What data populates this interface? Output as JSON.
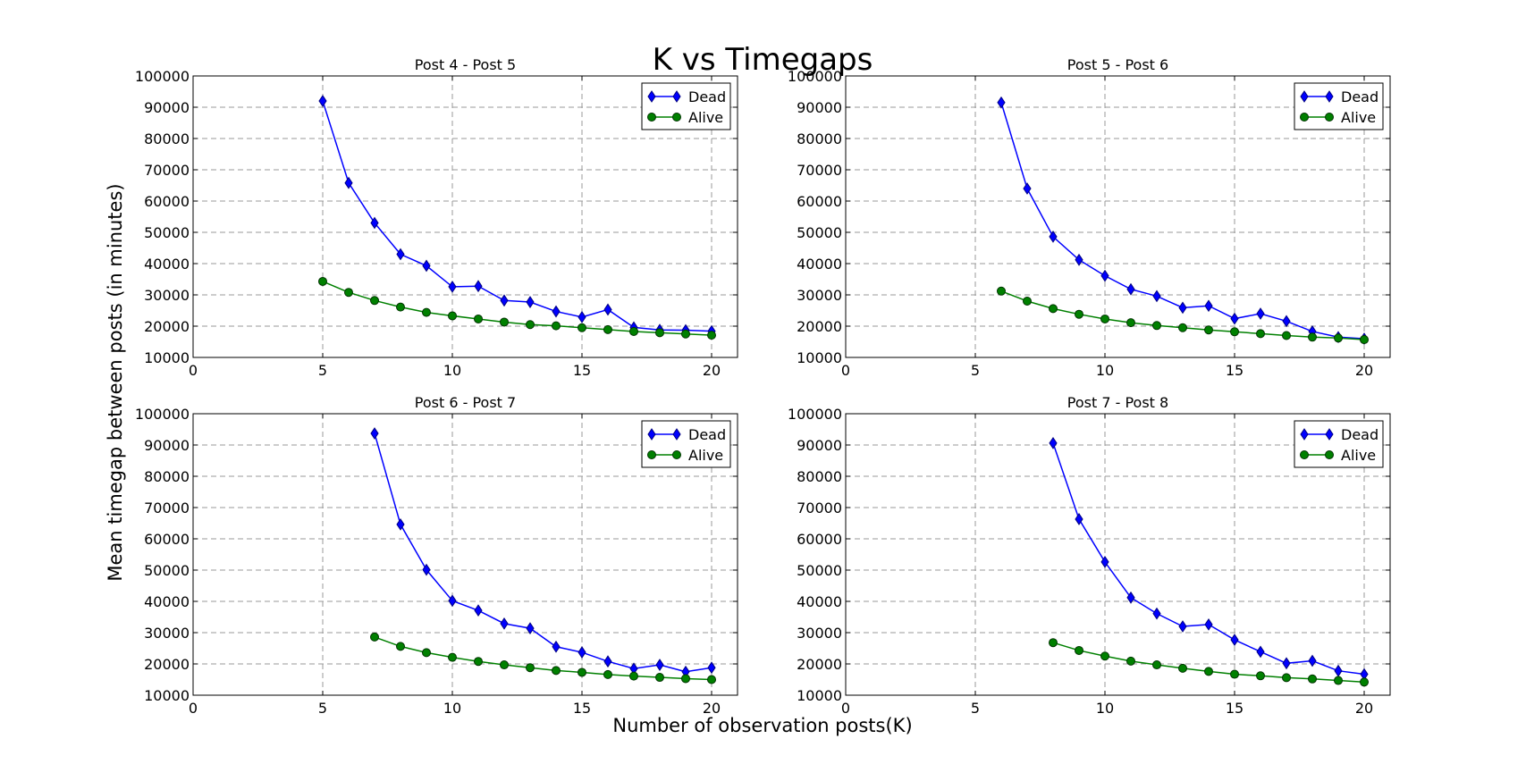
{
  "figure": {
    "title": "K vs Timegaps",
    "xlabel": "Number of observation posts(K)",
    "ylabel": "Mean timegap between posts (in minutes)"
  },
  "colors": {
    "dead": "#0000ff",
    "alive": "#008000",
    "dead_edge": "#000080",
    "alive_edge": "#003300"
  },
  "chart_data": [
    {
      "type": "line",
      "title": "Post 4 - Post 5",
      "xlim": [
        0,
        21
      ],
      "ylim": [
        10000,
        100000
      ],
      "xticks": [
        0,
        5,
        10,
        15,
        20
      ],
      "yticks": [
        10000,
        20000,
        30000,
        40000,
        50000,
        60000,
        70000,
        80000,
        90000,
        100000
      ],
      "grid": true,
      "legend": "top-right",
      "series": [
        {
          "name": "Dead",
          "marker": "diamond",
          "x": [
            5,
            6,
            7,
            8,
            9,
            10,
            11,
            12,
            13,
            14,
            15,
            16,
            17,
            18,
            19,
            20
          ],
          "y": [
            92000,
            65800,
            53000,
            43000,
            39300,
            32600,
            32800,
            28200,
            27700,
            24700,
            22900,
            25300,
            19600,
            18800,
            18700,
            18400
          ]
        },
        {
          "name": "Alive",
          "marker": "circle",
          "x": [
            5,
            6,
            7,
            8,
            9,
            10,
            11,
            12,
            13,
            14,
            15,
            16,
            17,
            18,
            19,
            20
          ],
          "y": [
            34300,
            30800,
            28200,
            26100,
            24400,
            23300,
            22300,
            21300,
            20500,
            20100,
            19500,
            18900,
            18300,
            17900,
            17500,
            17100
          ]
        }
      ]
    },
    {
      "type": "line",
      "title": "Post 5 - Post 6",
      "xlim": [
        0,
        21
      ],
      "ylim": [
        10000,
        100000
      ],
      "xticks": [
        0,
        5,
        10,
        15,
        20
      ],
      "yticks": [
        10000,
        20000,
        30000,
        40000,
        50000,
        60000,
        70000,
        80000,
        90000,
        100000
      ],
      "grid": true,
      "legend": "top-right",
      "series": [
        {
          "name": "Dead",
          "marker": "diamond",
          "x": [
            6,
            7,
            8,
            9,
            10,
            11,
            12,
            13,
            14,
            15,
            16,
            17,
            18,
            19,
            20
          ],
          "y": [
            91500,
            64000,
            48600,
            41200,
            36100,
            31800,
            29600,
            25900,
            26500,
            22400,
            24000,
            21600,
            18300,
            16500,
            16000
          ]
        },
        {
          "name": "Alive",
          "marker": "circle",
          "x": [
            6,
            7,
            8,
            9,
            10,
            11,
            12,
            13,
            14,
            15,
            16,
            17,
            18,
            19,
            20
          ],
          "y": [
            31200,
            28000,
            25600,
            23800,
            22300,
            21100,
            20200,
            19500,
            18800,
            18200,
            17600,
            17000,
            16500,
            16200,
            15700
          ]
        }
      ]
    },
    {
      "type": "line",
      "title": "Post 6 - Post 7",
      "xlim": [
        0,
        21
      ],
      "ylim": [
        10000,
        100000
      ],
      "xticks": [
        0,
        5,
        10,
        15,
        20
      ],
      "yticks": [
        10000,
        20000,
        30000,
        40000,
        50000,
        60000,
        70000,
        80000,
        90000,
        100000
      ],
      "grid": true,
      "legend": "top-right",
      "series": [
        {
          "name": "Dead",
          "marker": "diamond",
          "x": [
            7,
            8,
            9,
            10,
            11,
            12,
            13,
            14,
            15,
            16,
            17,
            18,
            19,
            20
          ],
          "y": [
            93700,
            64600,
            50100,
            40200,
            37100,
            32900,
            31400,
            25500,
            23700,
            20800,
            18500,
            19700,
            17500,
            18800
          ]
        },
        {
          "name": "Alive",
          "marker": "circle",
          "x": [
            7,
            8,
            9,
            10,
            11,
            12,
            13,
            14,
            15,
            16,
            17,
            18,
            19,
            20
          ],
          "y": [
            28600,
            25600,
            23600,
            22100,
            20800,
            19700,
            18800,
            17900,
            17300,
            16600,
            16100,
            15700,
            15300,
            15000
          ]
        }
      ]
    },
    {
      "type": "line",
      "title": "Post 7 - Post 8",
      "xlim": [
        0,
        21
      ],
      "ylim": [
        10000,
        100000
      ],
      "xticks": [
        0,
        5,
        10,
        15,
        20
      ],
      "yticks": [
        10000,
        20000,
        30000,
        40000,
        50000,
        60000,
        70000,
        80000,
        90000,
        100000
      ],
      "grid": true,
      "legend": "top-right",
      "series": [
        {
          "name": "Dead",
          "marker": "diamond",
          "x": [
            8,
            9,
            10,
            11,
            12,
            13,
            14,
            15,
            16,
            17,
            18,
            19,
            20
          ],
          "y": [
            90600,
            66300,
            52600,
            41200,
            36100,
            32000,
            32600,
            27700,
            23900,
            20200,
            21000,
            17800,
            16700
          ]
        },
        {
          "name": "Alive",
          "marker": "circle",
          "x": [
            8,
            9,
            10,
            11,
            12,
            13,
            14,
            15,
            16,
            17,
            18,
            19,
            20
          ],
          "y": [
            26800,
            24300,
            22500,
            20900,
            19700,
            18600,
            17600,
            16700,
            16200,
            15600,
            15200,
            14700,
            14200
          ]
        }
      ]
    }
  ]
}
